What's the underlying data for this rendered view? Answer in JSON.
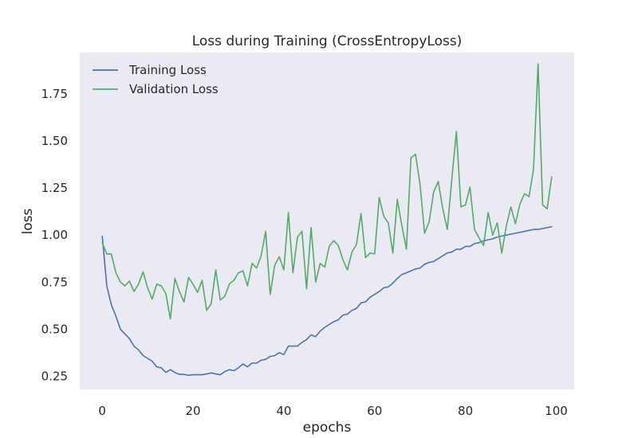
{
  "chart_data": {
    "type": "line",
    "title": "Loss during Training (CrossEntropyLoss)",
    "xlabel": "epochs",
    "ylabel": "loss",
    "xlim": [
      -4.95,
      103.95
    ],
    "ylim": [
      0.18,
      1.97
    ],
    "xticks": [
      0,
      20,
      40,
      60,
      80,
      100
    ],
    "yticks": [
      0.25,
      0.5,
      0.75,
      1.0,
      1.25,
      1.5,
      1.75
    ],
    "ytick_labels": [
      "0.25",
      "0.50",
      "0.75",
      "1.00",
      "1.25",
      "1.50",
      "1.75"
    ],
    "xtick_labels": [
      "0",
      "20",
      "40",
      "60",
      "80",
      "100"
    ],
    "grid": false,
    "legend_position": "upper-left",
    "background": "#eaeaf2",
    "series": [
      {
        "name": "Training Loss",
        "color": "#4c72b0",
        "x": [
          0,
          1,
          2,
          3,
          4,
          5,
          6,
          7,
          8,
          9,
          10,
          11,
          12,
          13,
          14,
          15,
          16,
          17,
          18,
          19,
          20,
          21,
          22,
          23,
          24,
          25,
          26,
          27,
          28,
          29,
          30,
          31,
          32,
          33,
          34,
          35,
          36,
          37,
          38,
          39,
          40,
          41,
          42,
          43,
          44,
          45,
          46,
          47,
          48,
          49,
          50,
          51,
          52,
          53,
          54,
          55,
          56,
          57,
          58,
          59,
          60,
          61,
          62,
          63,
          64,
          65,
          66,
          67,
          68,
          69,
          70,
          71,
          72,
          73,
          74,
          75,
          76,
          77,
          78,
          79,
          80,
          81,
          82,
          83,
          84,
          85,
          86,
          87,
          88,
          89,
          90,
          91,
          92,
          93,
          94,
          95,
          96,
          97,
          98,
          99
        ],
        "values": [
          0.995,
          0.73,
          0.63,
          0.57,
          0.5,
          0.475,
          0.45,
          0.41,
          0.39,
          0.36,
          0.345,
          0.33,
          0.3,
          0.295,
          0.27,
          0.285,
          0.27,
          0.26,
          0.26,
          0.255,
          0.258,
          0.258,
          0.258,
          0.262,
          0.268,
          0.262,
          0.258,
          0.275,
          0.285,
          0.28,
          0.295,
          0.315,
          0.3,
          0.32,
          0.32,
          0.335,
          0.34,
          0.355,
          0.36,
          0.375,
          0.365,
          0.41,
          0.41,
          0.41,
          0.43,
          0.445,
          0.47,
          0.46,
          0.49,
          0.51,
          0.525,
          0.54,
          0.55,
          0.575,
          0.58,
          0.6,
          0.61,
          0.64,
          0.645,
          0.67,
          0.685,
          0.7,
          0.72,
          0.725,
          0.745,
          0.77,
          0.79,
          0.8,
          0.81,
          0.82,
          0.825,
          0.845,
          0.855,
          0.86,
          0.875,
          0.89,
          0.905,
          0.91,
          0.925,
          0.925,
          0.94,
          0.94,
          0.955,
          0.96,
          0.97,
          0.975,
          0.98,
          0.99,
          0.995,
          1.0,
          1.005,
          1.01,
          1.015,
          1.02,
          1.025,
          1.03,
          1.03,
          1.035,
          1.04,
          1.045
        ]
      },
      {
        "name": "Validation Loss",
        "color": "#55a868",
        "x": [
          0,
          1,
          2,
          3,
          4,
          5,
          6,
          7,
          8,
          9,
          10,
          11,
          12,
          13,
          14,
          15,
          16,
          17,
          18,
          19,
          20,
          21,
          22,
          23,
          24,
          25,
          26,
          27,
          28,
          29,
          30,
          31,
          32,
          33,
          34,
          35,
          36,
          37,
          38,
          39,
          40,
          41,
          42,
          43,
          44,
          45,
          46,
          47,
          48,
          49,
          50,
          51,
          52,
          53,
          54,
          55,
          56,
          57,
          58,
          59,
          60,
          61,
          62,
          63,
          64,
          65,
          66,
          67,
          68,
          69,
          70,
          71,
          72,
          73,
          74,
          75,
          76,
          77,
          78,
          79,
          80,
          81,
          82,
          83,
          84,
          85,
          86,
          87,
          88,
          89,
          90,
          91,
          92,
          93,
          94,
          95,
          96,
          97,
          98,
          99
        ],
        "values": [
          0.96,
          0.9,
          0.9,
          0.8,
          0.75,
          0.73,
          0.755,
          0.7,
          0.74,
          0.805,
          0.72,
          0.66,
          0.74,
          0.73,
          0.69,
          0.555,
          0.77,
          0.7,
          0.645,
          0.775,
          0.74,
          0.695,
          0.76,
          0.6,
          0.635,
          0.815,
          0.655,
          0.675,
          0.74,
          0.76,
          0.8,
          0.81,
          0.73,
          0.85,
          0.825,
          0.89,
          1.02,
          0.685,
          0.84,
          0.885,
          0.815,
          1.12,
          0.8,
          0.99,
          1.02,
          0.715,
          1.04,
          0.75,
          0.85,
          0.83,
          0.94,
          0.97,
          0.945,
          0.87,
          0.815,
          0.91,
          0.95,
          1.115,
          0.88,
          0.905,
          0.9,
          1.2,
          1.1,
          1.065,
          0.905,
          1.19,
          1.05,
          0.925,
          1.41,
          1.43,
          1.27,
          1.01,
          1.07,
          1.23,
          1.285,
          1.14,
          1.03,
          1.3,
          1.55,
          1.15,
          1.16,
          1.255,
          1.03,
          0.985,
          0.945,
          1.12,
          1.0,
          1.065,
          0.905,
          1.05,
          1.15,
          1.06,
          1.165,
          1.22,
          1.205,
          1.35,
          1.91,
          1.16,
          1.14,
          1.31
        ]
      }
    ]
  }
}
